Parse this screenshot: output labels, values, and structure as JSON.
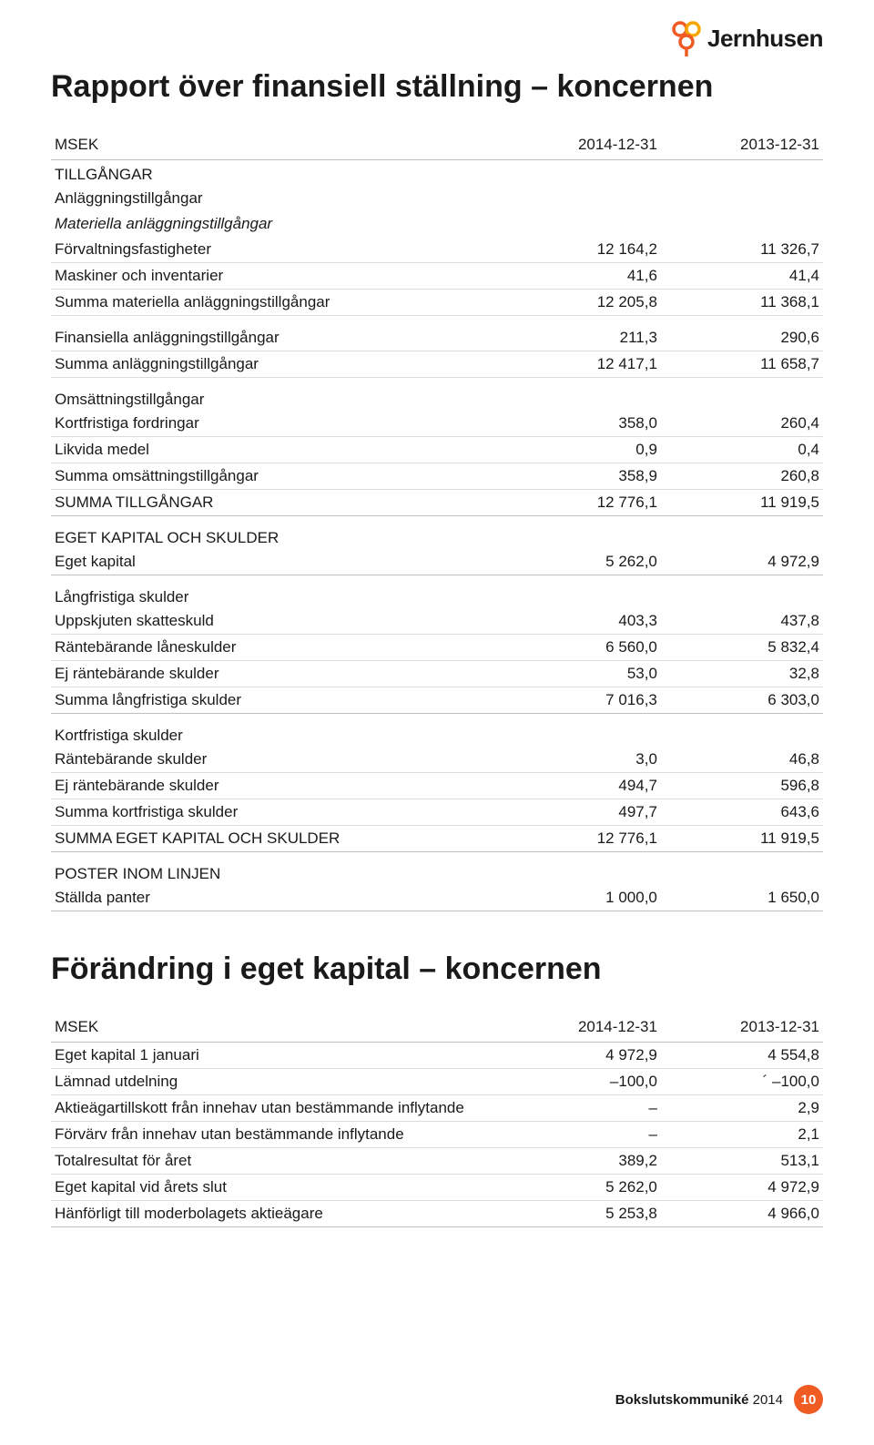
{
  "brand": {
    "name": "Jernhusen"
  },
  "title1": "Rapport över finansiell ställning – koncernen",
  "title2": "Förändring i eget kapital – koncernen",
  "table1": {
    "header": {
      "c0": "MSEK",
      "c1": "2014-12-31",
      "c2": "2013-12-31"
    },
    "rows": [
      {
        "type": "section-first",
        "label": "TILLGÅNGAR"
      },
      {
        "type": "no-border",
        "label": "Anläggningstillgångar"
      },
      {
        "type": "italic no-border",
        "label": "Materiella anläggningstillgångar"
      },
      {
        "label": "Förvaltningsfastigheter",
        "v1": "12 164,2",
        "v2": "11 326,7"
      },
      {
        "label": "Maskiner och inventarier",
        "v1": "41,6",
        "v2": "41,4"
      },
      {
        "label": "Summa materiella anläggningstillgångar",
        "v1": "12 205,8",
        "v2": "11 368,1"
      },
      {
        "type": "gap"
      },
      {
        "label": "Finansiella anläggningstillgångar",
        "v1": "211,3",
        "v2": "290,6"
      },
      {
        "label": "Summa anläggningstillgångar",
        "v1": "12 417,1",
        "v2": "11 658,7"
      },
      {
        "type": "section",
        "label": "Omsättningstillgångar"
      },
      {
        "label": "Kortfristiga fordringar",
        "v1": "358,0",
        "v2": "260,4"
      },
      {
        "label": "Likvida medel",
        "v1": "0,9",
        "v2": "0,4"
      },
      {
        "label": "Summa omsättningstillgångar",
        "v1": "358,9",
        "v2": "260,8"
      },
      {
        "type": "total",
        "label": "SUMMA TILLGÅNGAR",
        "v1": "12 776,1",
        "v2": "11 919,5"
      },
      {
        "type": "section",
        "label": "EGET KAPITAL OCH SKULDER"
      },
      {
        "type": "total",
        "label": "Eget kapital",
        "v1": "5 262,0",
        "v2": "4 972,9"
      },
      {
        "type": "section",
        "label": "Långfristiga skulder"
      },
      {
        "label": "Uppskjuten skatteskuld",
        "v1": "403,3",
        "v2": "437,8"
      },
      {
        "label": "Räntebärande låneskulder",
        "v1": "6 560,0",
        "v2": "5 832,4"
      },
      {
        "label": "Ej räntebärande skulder",
        "v1": "53,0",
        "v2": "32,8"
      },
      {
        "type": "total",
        "label": "Summa långfristiga skulder",
        "v1": "7 016,3",
        "v2": "6 303,0"
      },
      {
        "type": "section",
        "label": "Kortfristiga skulder"
      },
      {
        "label": "Räntebärande skulder",
        "v1": "3,0",
        "v2": "46,8"
      },
      {
        "label": "Ej räntebärande skulder",
        "v1": "494,7",
        "v2": "596,8"
      },
      {
        "label": "Summa kortfristiga skulder",
        "v1": "497,7",
        "v2": "643,6"
      },
      {
        "type": "total",
        "label": "SUMMA EGET KAPITAL OCH SKULDER",
        "v1": "12 776,1",
        "v2": "11 919,5"
      },
      {
        "type": "section",
        "label": "POSTER INOM LINJEN"
      },
      {
        "type": "total",
        "label": "Ställda panter",
        "v1": "1 000,0",
        "v2": "1 650,0"
      }
    ]
  },
  "table2": {
    "header": {
      "c0": "MSEK",
      "c1": "2014-12-31",
      "c2": "2013-12-31"
    },
    "rows": [
      {
        "label": "Eget kapital 1 januari",
        "v1": "4 972,9",
        "v2": "4 554,8"
      },
      {
        "label": "Lämnad utdelning",
        "v1": "–100,0",
        "v2": "´ –100,0"
      },
      {
        "label": "Aktieägartillskott från innehav utan bestämmande inflytande",
        "v1": "–",
        "v2": "2,9"
      },
      {
        "label": "Förvärv från innehav utan bestämmande inflytande",
        "v1": "–",
        "v2": "2,1"
      },
      {
        "label": "Totalresultat för året",
        "v1": "389,2",
        "v2": "513,1"
      },
      {
        "label": "Eget kapital vid årets slut",
        "v1": "5 262,0",
        "v2": "4 972,9"
      },
      {
        "type": "total",
        "label": "Hänförligt till moderbolagets aktieägare",
        "v1": "5 253,8",
        "v2": "4 966,0"
      }
    ]
  },
  "footer": {
    "label": "Bokslutskommuniké",
    "year": "2014",
    "page": "10"
  }
}
